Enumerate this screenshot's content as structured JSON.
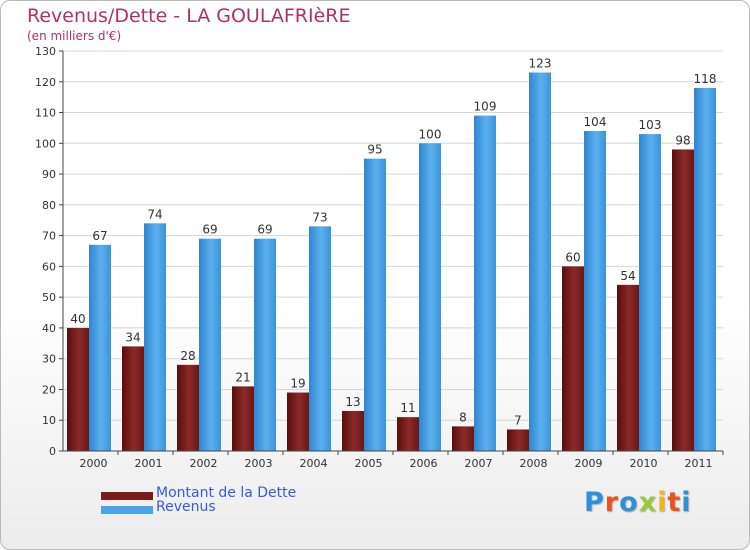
{
  "header": {
    "title": "Revenus/Dette - LA GOULAFRIèRE",
    "subtitle": "(en milliers d'€)"
  },
  "legend": {
    "items": [
      {
        "label": "Montant de la Dette",
        "color": "#7a1c1c"
      },
      {
        "label": "Revenus",
        "color": "#4aa3e6"
      }
    ]
  },
  "logo": {
    "text": "Proxiti",
    "letter_colors": [
      "#2f8fd8",
      "#e8541e",
      "#2f8fd8",
      "#9bc93a",
      "#f2b51f",
      "#e8541e",
      "#2f8fd8"
    ]
  },
  "chart_data": {
    "type": "bar",
    "categories": [
      "2000",
      "2001",
      "2002",
      "2003",
      "2004",
      "2005",
      "2006",
      "2007",
      "2008",
      "2009",
      "2010",
      "2011"
    ],
    "series": [
      {
        "name": "Montant de la Dette",
        "color": "#7a1c1c",
        "values": [
          40,
          34,
          28,
          21,
          19,
          13,
          11,
          8,
          7,
          60,
          54,
          98
        ]
      },
      {
        "name": "Revenus",
        "color": "#4aa3e6",
        "values": [
          67,
          74,
          69,
          69,
          73,
          95,
          100,
          109,
          123,
          104,
          103,
          118
        ]
      }
    ],
    "ylim": [
      0,
      130
    ],
    "ytick_step": 10,
    "grid": true,
    "legend_position": "bottom-left"
  }
}
